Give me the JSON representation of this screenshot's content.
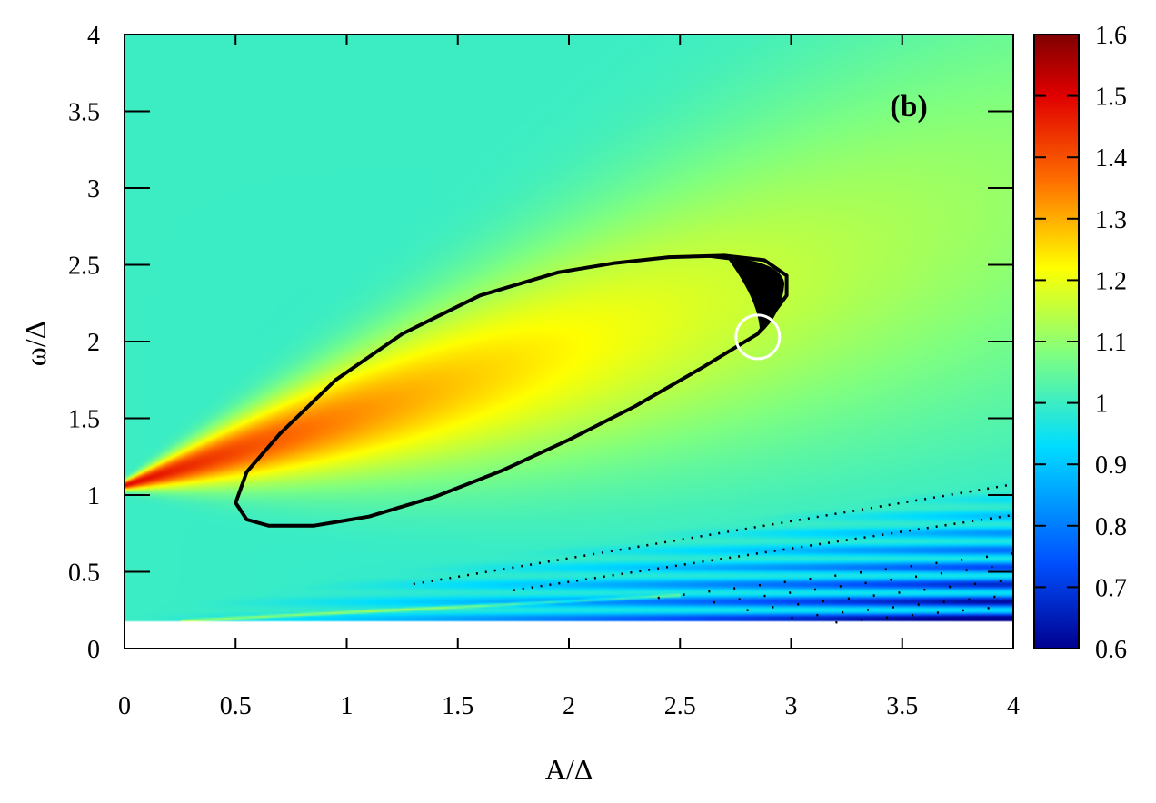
{
  "chart_data": {
    "type": "heatmap",
    "panel_label": "(b)",
    "xlabel": "A/Δ",
    "ylabel": "ω/Δ",
    "xlim": [
      0,
      4
    ],
    "ylim": [
      0,
      4
    ],
    "x_ticks": [
      0,
      0.5,
      1,
      1.5,
      2,
      2.5,
      3,
      3.5,
      4
    ],
    "x_tick_labels": [
      "0",
      "0.5",
      "1",
      "1.5",
      "2",
      "2.5",
      "3",
      "3.5",
      "4"
    ],
    "y_ticks": [
      0,
      0.5,
      1,
      1.5,
      2,
      2.5,
      3,
      3.5,
      4
    ],
    "y_tick_labels": [
      "0",
      "0.5",
      "1",
      "1.5",
      "2",
      "2.5",
      "3",
      "3.5",
      "4"
    ],
    "color_scale": {
      "min": 0.6,
      "max": 1.6,
      "ticks": [
        0.6,
        0.7,
        0.8,
        0.9,
        1,
        1.1,
        1.2,
        1.3,
        1.4,
        1.5,
        1.6
      ],
      "tick_labels": [
        "0.6",
        "0.7",
        "0.8",
        "0.9",
        "1",
        "1.1",
        "1.2",
        "1.3",
        "1.4",
        "1.5",
        "1.6"
      ],
      "colormap": [
        "#00008f",
        "#0050ff",
        "#00ddff",
        "#80ff80",
        "#ffff00",
        "#ff7000",
        "#e00000",
        "#800000"
      ]
    },
    "data_region_ymin": 0.1,
    "resonance_ellipse": {
      "color": "#000000",
      "points": [
        [
          0.5,
          0.95
        ],
        [
          0.55,
          0.84
        ],
        [
          0.65,
          0.8
        ],
        [
          0.85,
          0.8
        ],
        [
          1.1,
          0.86
        ],
        [
          1.4,
          0.99
        ],
        [
          1.7,
          1.16
        ],
        [
          2.0,
          1.36
        ],
        [
          2.3,
          1.58
        ],
        [
          2.6,
          1.83
        ],
        [
          2.85,
          2.05
        ],
        [
          2.98,
          2.3
        ],
        [
          2.98,
          2.43
        ],
        [
          2.88,
          2.53
        ],
        [
          2.7,
          2.56
        ],
        [
          2.45,
          2.55
        ],
        [
          2.2,
          2.51
        ],
        [
          1.95,
          2.45
        ],
        [
          1.6,
          2.3
        ],
        [
          1.25,
          2.05
        ],
        [
          0.95,
          1.75
        ],
        [
          0.7,
          1.4
        ],
        [
          0.55,
          1.15
        ],
        [
          0.5,
          0.95
        ]
      ]
    },
    "highlight_circle": {
      "x": 2.85,
      "y": 2.03,
      "color": "#ffffff"
    },
    "dotted_lines": [
      {
        "from": [
          1.3,
          0.42
        ],
        "to": [
          4.0,
          1.07
        ]
      },
      {
        "from": [
          1.75,
          0.38
        ],
        "to": [
          4.0,
          0.87
        ]
      },
      {
        "from": [
          2.4,
          0.33
        ],
        "to": [
          4.0,
          0.62
        ]
      },
      {
        "from": [
          2.65,
          0.3
        ],
        "to": [
          4.0,
          0.55
        ]
      },
      {
        "from": [
          2.8,
          0.25
        ],
        "to": [
          4.0,
          0.45
        ]
      },
      {
        "from": [
          3.0,
          0.2
        ],
        "to": [
          4.0,
          0.35
        ]
      },
      {
        "from": [
          3.2,
          0.17
        ],
        "to": [
          4.0,
          0.28
        ]
      }
    ]
  }
}
